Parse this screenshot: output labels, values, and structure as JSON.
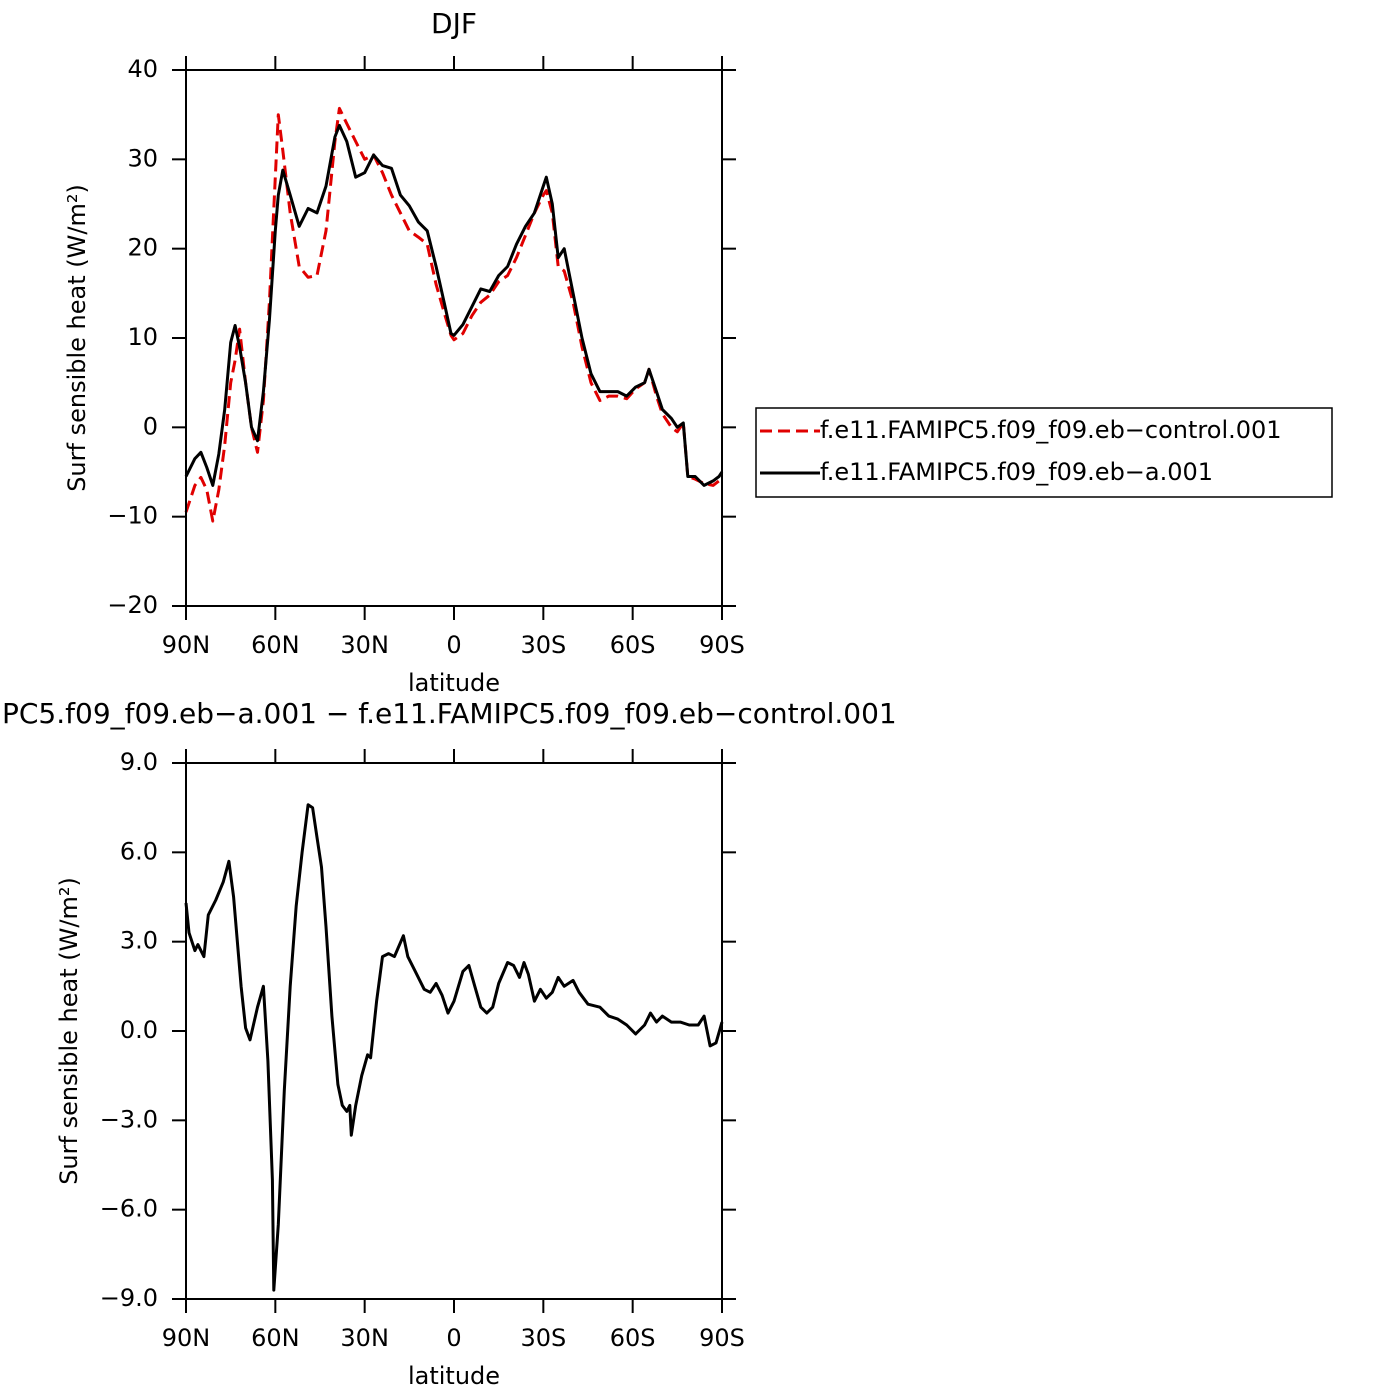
{
  "chart_data": [
    {
      "type": "line",
      "title": "DJF",
      "xlabel": "latitude",
      "ylabel": "Surf sensible heat (W/m²)",
      "xlim": [
        90,
        -90
      ],
      "ylim": [
        -20,
        40
      ],
      "xticks": [
        {
          "value": 90,
          "label": "90N"
        },
        {
          "value": 60,
          "label": "60N"
        },
        {
          "value": 30,
          "label": "30N"
        },
        0,
        {
          "value": -30,
          "label": "30S"
        },
        {
          "value": -60,
          "label": "60S"
        },
        {
          "value": -90,
          "label": "90S"
        }
      ],
      "yticks": [
        {
          "value": -20,
          "label": "−20"
        },
        {
          "value": -10,
          "label": "−10"
        },
        0,
        10,
        20,
        30,
        40
      ],
      "legend": "right",
      "x": [
        90,
        87,
        85,
        83,
        81,
        79,
        77,
        75,
        73.5,
        72,
        70,
        68,
        66,
        64,
        62,
        60,
        59,
        57.5,
        55,
        52,
        49,
        46,
        43,
        40,
        38.5,
        36,
        33,
        30,
        27,
        24,
        21,
        18,
        15,
        12,
        9,
        6,
        3,
        1,
        0,
        -3,
        -6,
        -9,
        -12,
        -15,
        -18,
        -21,
        -24,
        -27,
        -30,
        -31,
        -33,
        -35,
        -37,
        -40,
        -43,
        -46,
        -49,
        -52,
        -55,
        -58,
        -61,
        -64,
        -65.5,
        -68,
        -70,
        -73,
        -75,
        -77,
        -78.5,
        -81,
        -84,
        -87,
        -89,
        -90
      ],
      "series": [
        {
          "name": "f.e11.FAMIPC5.f09_f09.eb−control.001",
          "color": "#e00000",
          "style": "dashed",
          "values": [
            -9.5,
            -6.5,
            -5.6,
            -7,
            -10.5,
            -7,
            -2,
            5,
            7.5,
            11,
            5,
            0,
            -2.8,
            3,
            14,
            28,
            35,
            31,
            24,
            18,
            16.8,
            17,
            22,
            32,
            35.7,
            34,
            32,
            30,
            30.5,
            28.5,
            26,
            24,
            22,
            21.3,
            20.5,
            16,
            12.5,
            10.3,
            9.8,
            10.5,
            12.5,
            14,
            14.8,
            16.3,
            17,
            19,
            21.5,
            24,
            26,
            26.5,
            24,
            18,
            17.5,
            14,
            9,
            5,
            3,
            3.5,
            3.5,
            3.2,
            4.3,
            5,
            6.5,
            3.5,
            1.5,
            0,
            -0.5,
            0.5,
            -5.5,
            -5.8,
            -6.3,
            -6.5,
            -6,
            -5.5
          ]
        },
        {
          "name": "f.e11.FAMIPC5.f09_f09.eb−a.001",
          "color": "#000000",
          "style": "solid",
          "values": [
            -5.5,
            -3.5,
            -2.8,
            -4.5,
            -6.5,
            -3,
            2,
            9.5,
            11.4,
            9,
            5,
            0,
            -1.5,
            4,
            12,
            22,
            26,
            28.8,
            26,
            22.5,
            24.5,
            24,
            27,
            32.5,
            33.8,
            32,
            28,
            28.5,
            30.5,
            29.3,
            29,
            26,
            24.8,
            23,
            22,
            18,
            13.5,
            10.5,
            10.3,
            11.5,
            13.5,
            15.5,
            15.2,
            17,
            18,
            20.5,
            22.5,
            24,
            27,
            28,
            25,
            19,
            20,
            15,
            10,
            6,
            4,
            4,
            4,
            3.5,
            4.5,
            5,
            6.5,
            4,
            2,
            1,
            0,
            0.5,
            -5.5,
            -5.5,
            -6.5,
            -6,
            -5.5,
            -5
          ]
        }
      ]
    },
    {
      "type": "line",
      "title": "PC5.f09_f09.eb−a.001 − f.e11.FAMIPC5.f09_f09.eb−control.001",
      "xlabel": "latitude",
      "ylabel": "Surf sensible heat (W/m²)",
      "xlim": [
        90,
        -90
      ],
      "ylim": [
        -9,
        9
      ],
      "xticks": [
        {
          "value": 90,
          "label": "90N"
        },
        {
          "value": 60,
          "label": "60N"
        },
        {
          "value": 30,
          "label": "30N"
        },
        0,
        {
          "value": -30,
          "label": "30S"
        },
        {
          "value": -60,
          "label": "60S"
        },
        {
          "value": -90,
          "label": "90S"
        }
      ],
      "yticks": [
        {
          "value": -9,
          "label": "−9.0"
        },
        {
          "value": -6,
          "label": "−6.0"
        },
        {
          "value": -3,
          "label": "−3.0"
        },
        {
          "value": 0,
          "label": "0.0"
        },
        {
          "value": 3,
          "label": "3.0"
        },
        {
          "value": 6,
          "label": "6.0"
        },
        {
          "value": 9,
          "label": "9.0"
        }
      ],
      "color": "#000000",
      "x": [
        90,
        89,
        87,
        86,
        84,
        82.5,
        80,
        77.5,
        75.6,
        74,
        71.5,
        70,
        68.5,
        66,
        64,
        62.5,
        61,
        60.5,
        59,
        57,
        55,
        53,
        51,
        49,
        47.5,
        46,
        44.5,
        43,
        41,
        39,
        37.5,
        36,
        35,
        34.5,
        33,
        31,
        29,
        28,
        26,
        24,
        22,
        20,
        17,
        15.5,
        13,
        10,
        8,
        6,
        4,
        2,
        0,
        -3,
        -5,
        -7,
        -9,
        -11,
        -13,
        -15,
        -18,
        -20,
        -22,
        -23.5,
        -25,
        -27,
        -29,
        -31,
        -33,
        -35,
        -37,
        -40,
        -42,
        -45,
        -49,
        -52,
        -55,
        -58,
        -61,
        -64,
        -66,
        -68,
        -70,
        -73,
        -76,
        -79,
        -82,
        -84,
        -86,
        -88,
        -90
      ],
      "values": [
        4.3,
        3.3,
        2.7,
        2.9,
        2.5,
        3.9,
        4.4,
        5,
        5.7,
        4.5,
        1.5,
        0.1,
        -0.3,
        0.8,
        1.5,
        -1,
        -5,
        -8.7,
        -6.5,
        -2,
        1.5,
        4.2,
        6,
        7.6,
        7.5,
        6.5,
        5.5,
        3.5,
        0.5,
        -1.8,
        -2.5,
        -2.7,
        -2.5,
        -3.5,
        -2.5,
        -1.5,
        -0.8,
        -0.9,
        1,
        2.5,
        2.6,
        2.5,
        3.2,
        2.5,
        2,
        1.4,
        1.3,
        1.6,
        1.2,
        0.6,
        1,
        2,
        2.2,
        1.5,
        0.8,
        0.6,
        0.8,
        1.6,
        2.3,
        2.2,
        1.8,
        2.3,
        1.9,
        1,
        1.4,
        1.1,
        1.3,
        1.8,
        1.5,
        1.7,
        1.3,
        0.9,
        0.8,
        0.5,
        0.4,
        0.2,
        -0.1,
        0.2,
        0.6,
        0.3,
        0.5,
        0.3,
        0.3,
        0.2,
        0.2,
        0.5,
        -0.5,
        -0.4,
        0.3
      ]
    }
  ]
}
